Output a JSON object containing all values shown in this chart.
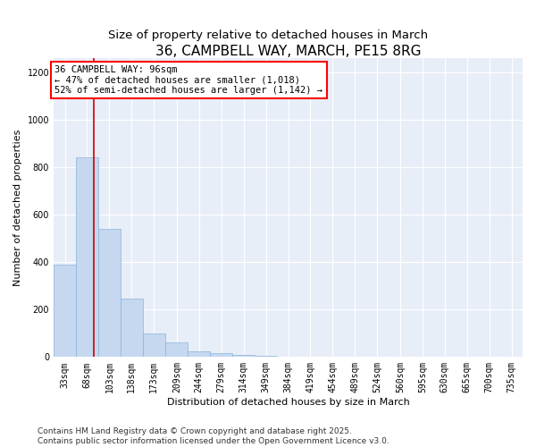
{
  "title": "36, CAMPBELL WAY, MARCH, PE15 8RG",
  "subtitle": "Size of property relative to detached houses in March",
  "xlabel": "Distribution of detached houses by size in March",
  "ylabel": "Number of detached properties",
  "bar_color": "#c5d8f0",
  "bar_edge_color": "#8ab4d8",
  "background_color": "#e8eef8",
  "grid_color": "white",
  "property_line_color": "#cc0000",
  "property_size": 96,
  "property_label": "36 CAMPBELL WAY: 96sqm",
  "annotation_line1": "← 47% of detached houses are smaller (1,018)",
  "annotation_line2": "52% of semi-detached houses are larger (1,142) →",
  "bin_labels": [
    "33sqm",
    "68sqm",
    "103sqm",
    "138sqm",
    "173sqm",
    "209sqm",
    "244sqm",
    "279sqm",
    "314sqm",
    "349sqm",
    "384sqm",
    "419sqm",
    "454sqm",
    "489sqm",
    "524sqm",
    "560sqm",
    "595sqm",
    "630sqm",
    "665sqm",
    "700sqm",
    "735sqm"
  ],
  "bin_left_edges": [
    33,
    68,
    103,
    138,
    173,
    209,
    244,
    279,
    314,
    349,
    384,
    419,
    454,
    489,
    524,
    560,
    595,
    630,
    665,
    700,
    735
  ],
  "bin_width": 35,
  "bar_heights": [
    390,
    840,
    540,
    248,
    100,
    60,
    22,
    15,
    10,
    5,
    0,
    0,
    0,
    0,
    0,
    0,
    0,
    0,
    0,
    0,
    0
  ],
  "ylim": [
    0,
    1260
  ],
  "yticks": [
    0,
    200,
    400,
    600,
    800,
    1000,
    1200
  ],
  "footnote_line1": "Contains HM Land Registry data © Crown copyright and database right 2025.",
  "footnote_line2": "Contains public sector information licensed under the Open Government Licence v3.0.",
  "title_fontsize": 11,
  "subtitle_fontsize": 9.5,
  "axis_label_fontsize": 8,
  "tick_fontsize": 7,
  "annotation_fontsize": 7.5,
  "footnote_fontsize": 6.5
}
